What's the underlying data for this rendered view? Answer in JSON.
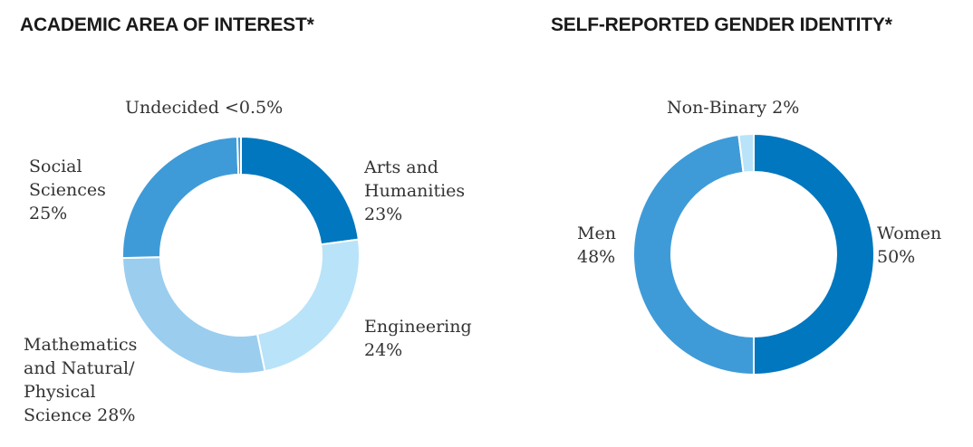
{
  "chart_data": [
    {
      "type": "pie",
      "variant": "donut",
      "title": "ACADEMIC AREA OF INTEREST*",
      "categories": [
        "Arts and Humanities",
        "Engineering",
        "Mathematics and Natural/ Physical Science",
        "Social Sciences",
        "Undecided"
      ],
      "values": [
        23,
        24,
        28,
        25,
        0.5
      ],
      "value_labels": [
        "23%",
        "24%",
        "28%",
        "25%",
        "<0.5%"
      ],
      "colors": [
        "#0077bf",
        "#b9e3f8",
        "#9bcdee",
        "#3e9bd8",
        "#3e9bd8"
      ],
      "labels": {
        "arts": [
          "Arts and",
          "Humanities",
          "23%"
        ],
        "engineering": [
          "Engineering",
          "24%"
        ],
        "math": [
          "Mathematics",
          "and Natural/",
          "Physical",
          "Science 28%"
        ],
        "social": [
          "Social",
          "Sciences",
          "25%"
        ],
        "undecided": [
          "Undecided <0.5%"
        ]
      }
    },
    {
      "type": "pie",
      "variant": "donut",
      "title": "SELF-REPORTED GENDER IDENTITY*",
      "categories": [
        "Women",
        "Men",
        "Non-Binary"
      ],
      "values": [
        50,
        48,
        2
      ],
      "value_labels": [
        "50%",
        "48%",
        "2%"
      ],
      "colors": [
        "#0077bf",
        "#3e9bd8",
        "#b9e3f8"
      ],
      "labels": {
        "women": [
          "Women",
          "50%"
        ],
        "men": [
          "Men",
          "48%"
        ],
        "nonbinary": [
          "Non-Binary 2%"
        ]
      }
    }
  ]
}
